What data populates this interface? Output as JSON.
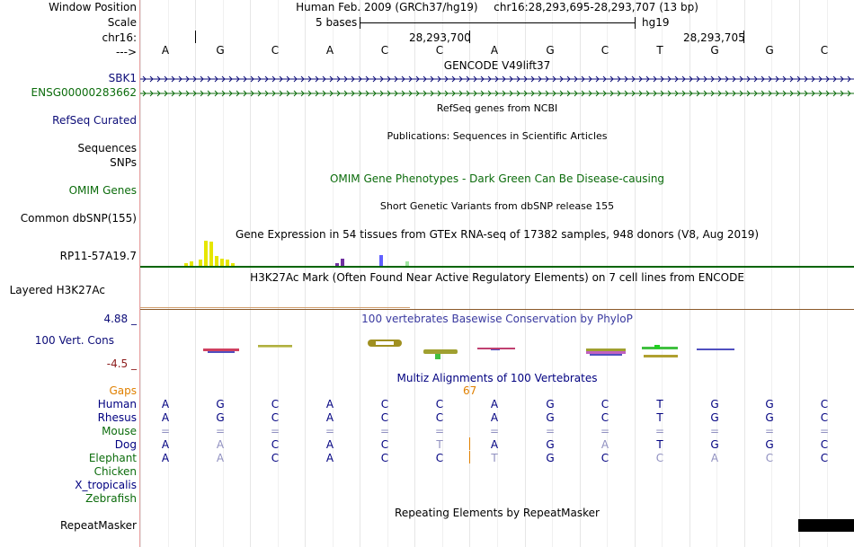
{
  "labels": {
    "window_position": "Window Position",
    "scale": "Scale",
    "chrom": "chr16:",
    "arrow": "--->",
    "sbk1": "SBK1",
    "ensg": "ENSG00000283662",
    "refseq": "RefSeq Curated",
    "sequences": "Sequences",
    "snps": "SNPs",
    "omim": "OMIM Genes",
    "dbsnp": "Common dbSNP(155)",
    "gtex_gene": "RP11-57A19.7",
    "h3k27ac": "Layered H3K27Ac",
    "cons_max": "4.88 _",
    "cons_label": "100 Vert. Cons",
    "cons_min": "-4.5 _",
    "gaps": "Gaps",
    "human": "Human",
    "rhesus": "Rhesus",
    "mouse": "Mouse",
    "dog": "Dog",
    "elephant": "Elephant",
    "chicken": "Chicken",
    "xtrop": "X_tropicalis",
    "zebrafish": "Zebrafish",
    "repeatmasker": "RepeatMasker"
  },
  "header": {
    "assembly": "Human Feb. 2009 (GRCh37/hg19)",
    "position": "chr16:28,293,695-28,293,707 (13 bp)",
    "scale_text": "5 bases",
    "scale_db": "hg19",
    "coord1": "28,293,700",
    "coord2": "28,293,705"
  },
  "tracks": {
    "gencode": "GENCODE V49lift37",
    "refseq": "RefSeq genes from NCBI",
    "pubs": "Publications: Sequences in Scientific Articles",
    "omim": "OMIM Gene Phenotypes - Dark Green Can Be Disease-causing",
    "dbsnp": "Short Genetic Variants from dbSNP release 155",
    "gtex": "Gene Expression in 54 tissues from GTEx RNA-seq of 17382 samples, 948 donors (V8, Aug 2019)",
    "h3k27ac": "H3K27Ac Mark (Often Found Near Active Regulatory Elements) on 7 cell lines from ENCODE",
    "phylop": "100 vertebrates Basewise Conservation by PhyloP",
    "multiz": "Multiz Alignments of 100 Vertebrates",
    "gap_count": "67",
    "repeat": "Repeating Elements by RepeatMasker"
  },
  "sequence": [
    "A",
    "G",
    "C",
    "A",
    "C",
    "C",
    "A",
    "G",
    "C",
    "T",
    "G",
    "G",
    "C"
  ],
  "alignments": {
    "human": [
      "A",
      "G",
      "C",
      "A",
      "C",
      "C",
      "A",
      "G",
      "C",
      "T",
      "G",
      "G",
      "C"
    ],
    "rhesus": [
      "A",
      "G",
      "C",
      "A",
      "C",
      "C",
      "A",
      "G",
      "C",
      "T",
      "G",
      "G",
      "C"
    ],
    "mouse": [
      "=",
      "=",
      "=",
      "=",
      "=",
      "=",
      "=",
      "=",
      "=",
      "=",
      "=",
      "=",
      "="
    ],
    "dog": [
      "A",
      "A",
      "C",
      "A",
      "C",
      "T",
      "A",
      "G",
      "A",
      "T",
      "G",
      "G",
      "C"
    ],
    "elephant": [
      "A",
      "A",
      "C",
      "A",
      "C",
      "C",
      "T",
      "G",
      "C",
      "C",
      "A",
      "C",
      "C"
    ]
  },
  "colors": {
    "label_blue": "#0c0c78",
    "label_green": "#0c6c0c",
    "gaps_orange": "#e08000"
  }
}
